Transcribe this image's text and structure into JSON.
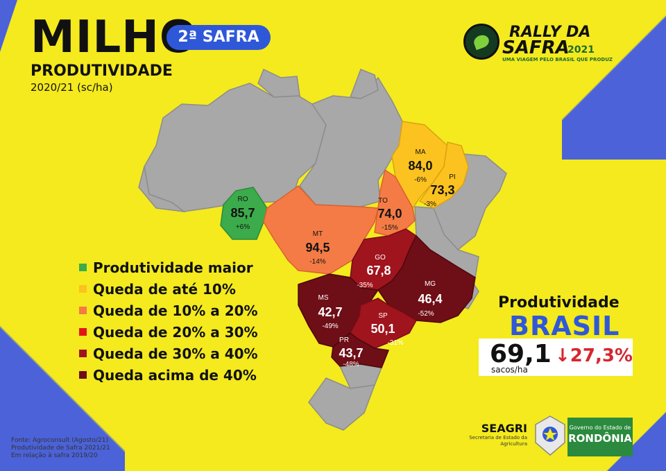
{
  "header": {
    "title": "MILHO",
    "badge": "2ª SAFRA",
    "subtitle": "PRODUTIVIDADE",
    "subtitle2": "2020/21 (sc/ha)"
  },
  "logo": {
    "line1": "RALLY DA",
    "line2": "SAFRA",
    "year": "2021",
    "tagline": "UMA VIAGEM PELO BRASIL QUE PRODUZ"
  },
  "states": [
    {
      "abbr": "RO",
      "value": "85,7",
      "change": "+6%",
      "color": "#3cab4b"
    },
    {
      "abbr": "MT",
      "value": "94,5",
      "change": "-14%",
      "color": "#f47b45"
    },
    {
      "abbr": "MA",
      "value": "84,0",
      "change": "-6%",
      "color": "#fcc21f"
    },
    {
      "abbr": "PI",
      "value": "73,3",
      "change": "-3%",
      "color": "#fcc21f"
    },
    {
      "abbr": "TO",
      "value": "74,0",
      "change": "-15%",
      "color": "#f47b45"
    },
    {
      "abbr": "GO",
      "value": "67,8",
      "change": "-35%",
      "color": "#a0141e"
    },
    {
      "abbr": "MS",
      "value": "42,7",
      "change": "-49%",
      "color": "#6e0e16"
    },
    {
      "abbr": "MG",
      "value": "46,4",
      "change": "-52%",
      "color": "#6e0e16"
    },
    {
      "abbr": "SP",
      "value": "50,1",
      "change": "-31%",
      "color": "#a0141e"
    },
    {
      "abbr": "PR",
      "value": "43,7",
      "change": "-48%",
      "color": "#6e0e16"
    }
  ],
  "legend": [
    {
      "label": "Produtividade maior",
      "color": "#3cab4b"
    },
    {
      "label": "Queda de até 10%",
      "color": "#fcc21f"
    },
    {
      "label": "Queda de 10% a 20%",
      "color": "#f47b45"
    },
    {
      "label": "Queda de 20% a 30%",
      "color": "#e3151b"
    },
    {
      "label": "Queda de 30% a 40%",
      "color": "#a0141e"
    },
    {
      "label": "Queda acima de 40%",
      "color": "#6e0e16"
    }
  ],
  "brasil": {
    "title": "Produtividade",
    "name": "BRASIL",
    "value": "69,1",
    "unit": "sacos/ha",
    "change": "↓27,3%"
  },
  "source": {
    "line1": "Fonte: Agroconsult (Agosto/21)",
    "line2": "Produtividade de Safra 2021/21",
    "line3": "Em relação à safra 2019/20"
  },
  "seagri": {
    "name": "SEAGRI",
    "line1": "Secretaria de Estado da",
    "line2": "Agricultura"
  },
  "gov": {
    "line1": "Governo do Estado de",
    "name": "RONDÔNIA"
  }
}
